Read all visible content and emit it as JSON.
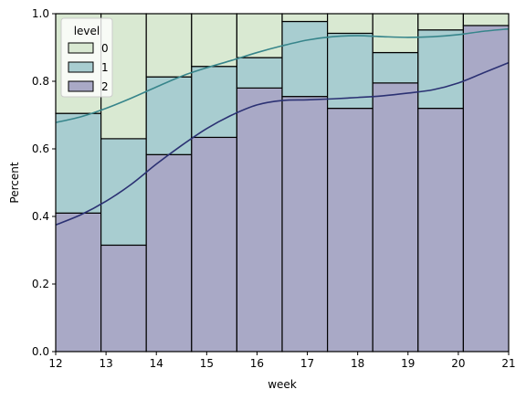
{
  "chart_data": {
    "type": "bar",
    "stacked": true,
    "xlabel": "week",
    "ylabel": "Percent",
    "xlim": [
      12,
      21
    ],
    "ylim": [
      0,
      1.0
    ],
    "x_ticks": [
      "12",
      "13",
      "14",
      "15",
      "16",
      "17",
      "18",
      "19",
      "20",
      "21"
    ],
    "y_ticks": [
      "0.0",
      "0.2",
      "0.4",
      "0.6",
      "0.8",
      "1.0"
    ],
    "grid": false,
    "legend": {
      "title": "level",
      "placement": "top-left",
      "entries": [
        "0",
        "1",
        "2"
      ]
    },
    "bin_edges": [
      12,
      12.9,
      13.8,
      14.7,
      15.6,
      16.5,
      17.4,
      18.3,
      19.2,
      20.1,
      21
    ],
    "series": [
      {
        "name": "2",
        "color": "#a9a9c6",
        "line_color": "#2b3173",
        "values": [
          0.41,
          0.315,
          0.583,
          0.634,
          0.78,
          0.755,
          0.72,
          0.795,
          0.72,
          0.965
        ]
      },
      {
        "name": "1",
        "color": "#a8cdd0",
        "line_color": "#37858b",
        "values": [
          0.295,
          0.315,
          0.23,
          0.21,
          0.09,
          0.222,
          0.222,
          0.09,
          0.232,
          0.0
        ]
      },
      {
        "name": "0",
        "color": "#d9e9d2",
        "line_color": "#9fc39a",
        "values": [
          0.295,
          0.37,
          0.187,
          0.156,
          0.13,
          0.023,
          0.058,
          0.115,
          0.048,
          0.035
        ]
      }
    ],
    "kde_curves": [
      {
        "name": "2",
        "color": "#2b3173",
        "x": [
          12,
          12.5,
          13,
          13.5,
          14,
          14.5,
          15,
          15.5,
          16,
          16.5,
          17,
          17.5,
          18,
          18.5,
          19,
          19.5,
          20,
          20.5,
          21
        ],
        "y": [
          0.375,
          0.405,
          0.445,
          0.495,
          0.555,
          0.61,
          0.66,
          0.7,
          0.73,
          0.743,
          0.745,
          0.748,
          0.752,
          0.757,
          0.765,
          0.775,
          0.795,
          0.825,
          0.855
        ]
      },
      {
        "name": "1",
        "color": "#37858b",
        "x": [
          12,
          12.5,
          13,
          13.5,
          14,
          14.5,
          15,
          15.5,
          16,
          16.5,
          17,
          17.5,
          18,
          18.5,
          19,
          19.5,
          20,
          20.5,
          21
        ],
        "y": [
          0.678,
          0.695,
          0.72,
          0.75,
          0.783,
          0.815,
          0.84,
          0.862,
          0.885,
          0.905,
          0.922,
          0.932,
          0.935,
          0.932,
          0.93,
          0.932,
          0.938,
          0.948,
          0.955
        ]
      }
    ]
  }
}
